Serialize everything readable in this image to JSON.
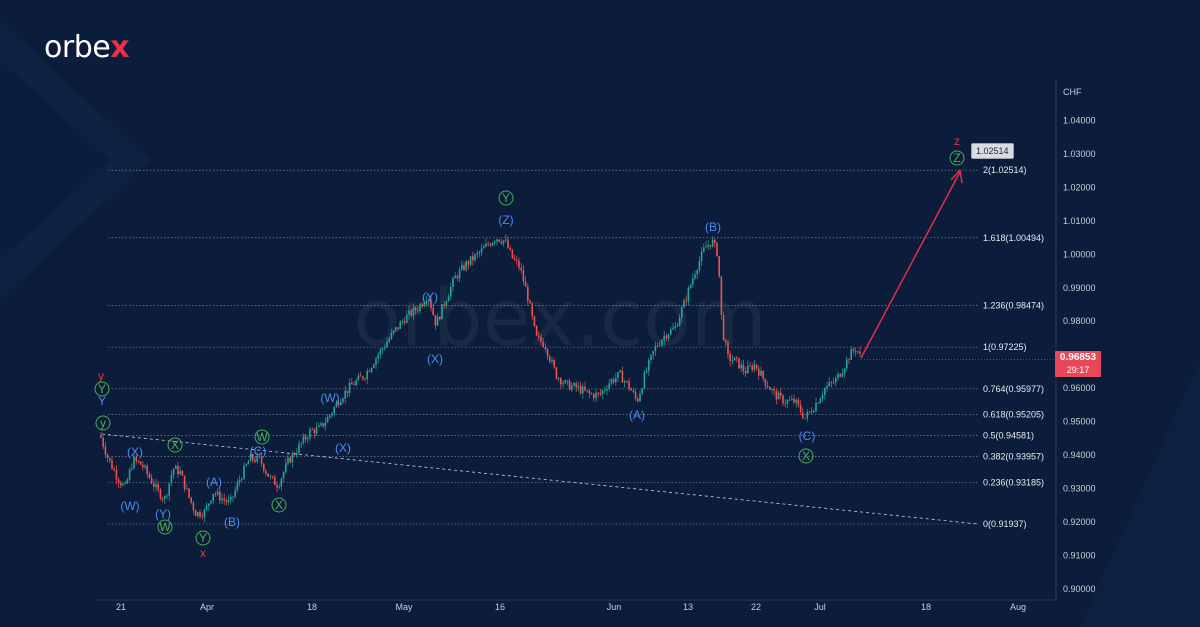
{
  "brand": {
    "logo_text": "orbe",
    "logo_accent": "x"
  },
  "watermark": "orbex.com",
  "price_tag": {
    "price": "0.96853",
    "timer": "29:17"
  },
  "target_label": "1.02514",
  "colors": {
    "background": "#0b1d3a",
    "up": "#26a69a",
    "down": "#ef5350",
    "blue_label": "#4b8cf5",
    "green_label": "#4caf50",
    "red_label": "#e8314a",
    "projection": "#e8314a",
    "price_tag": "#e8495a"
  },
  "chart_data": {
    "type": "candlestick",
    "ylabel": "CHF",
    "ylim": [
      0.895,
      1.0445
    ],
    "y_ticks": [
      "1.04000",
      "1.03000",
      "1.02000",
      "1.01000",
      "1.00000",
      "0.99000",
      "0.98000",
      "0.97000",
      "0.96000",
      "0.95000",
      "0.94000",
      "0.93000",
      "0.92000",
      "0.91000",
      "0.90000"
    ],
    "x_tick_labels": [
      "21",
      "Apr",
      "18",
      "May",
      "16",
      "Jun",
      "13",
      "22",
      "Jul",
      "18",
      "Aug"
    ],
    "fibonacci_levels": [
      {
        "label": "2(1.02514)",
        "value": 1.02514
      },
      {
        "label": "1.618(1.00494)",
        "value": 1.00494
      },
      {
        "label": "1.236(0.98474)",
        "value": 0.98474
      },
      {
        "label": "1(0.97225)",
        "value": 0.97225
      },
      {
        "label": "0.764(0.95977)",
        "value": 0.95977
      },
      {
        "label": "0.618(0.95205)",
        "value": 0.95205
      },
      {
        "label": "0.5(0.94581)",
        "value": 0.94581
      },
      {
        "label": "0.382(0.93957)",
        "value": 0.93957
      },
      {
        "label": "0.236(0.93185)",
        "value": 0.93185
      },
      {
        "label": "0(0.91937)",
        "value": 0.91937
      }
    ],
    "current_price": 0.96853,
    "projection_target": 1.02514,
    "wave_labels": [
      {
        "text": "y",
        "color": "red"
      },
      {
        "text": "Y",
        "color": "green"
      },
      {
        "text": "Y",
        "color": "blue"
      },
      {
        "text": "y",
        "color": "green"
      },
      {
        "text": "(X)",
        "color": "blue"
      },
      {
        "text": "(W)",
        "color": "blue"
      },
      {
        "text": "X",
        "color": "green"
      },
      {
        "text": "(Y)",
        "color": "blue"
      },
      {
        "text": "W",
        "color": "green"
      },
      {
        "text": "Y",
        "color": "green"
      },
      {
        "text": "x",
        "color": "red"
      },
      {
        "text": "(A)",
        "color": "blue"
      },
      {
        "text": "(B)",
        "color": "blue"
      },
      {
        "text": "W",
        "color": "green"
      },
      {
        "text": "(C)",
        "color": "blue"
      },
      {
        "text": "X",
        "color": "green"
      },
      {
        "text": "(W)",
        "color": "blue"
      },
      {
        "text": "(X)",
        "color": "blue"
      },
      {
        "text": "(Y)",
        "color": "blue"
      },
      {
        "text": "(X)",
        "color": "blue"
      },
      {
        "text": "Y",
        "color": "green"
      },
      {
        "text": "(Z)",
        "color": "blue"
      },
      {
        "text": "(A)",
        "color": "blue"
      },
      {
        "text": "(B)",
        "color": "blue"
      },
      {
        "text": "(C)",
        "color": "blue"
      },
      {
        "text": "X",
        "color": "green"
      },
      {
        "text": "z",
        "color": "red"
      },
      {
        "text": "Z",
        "color": "green"
      }
    ]
  }
}
